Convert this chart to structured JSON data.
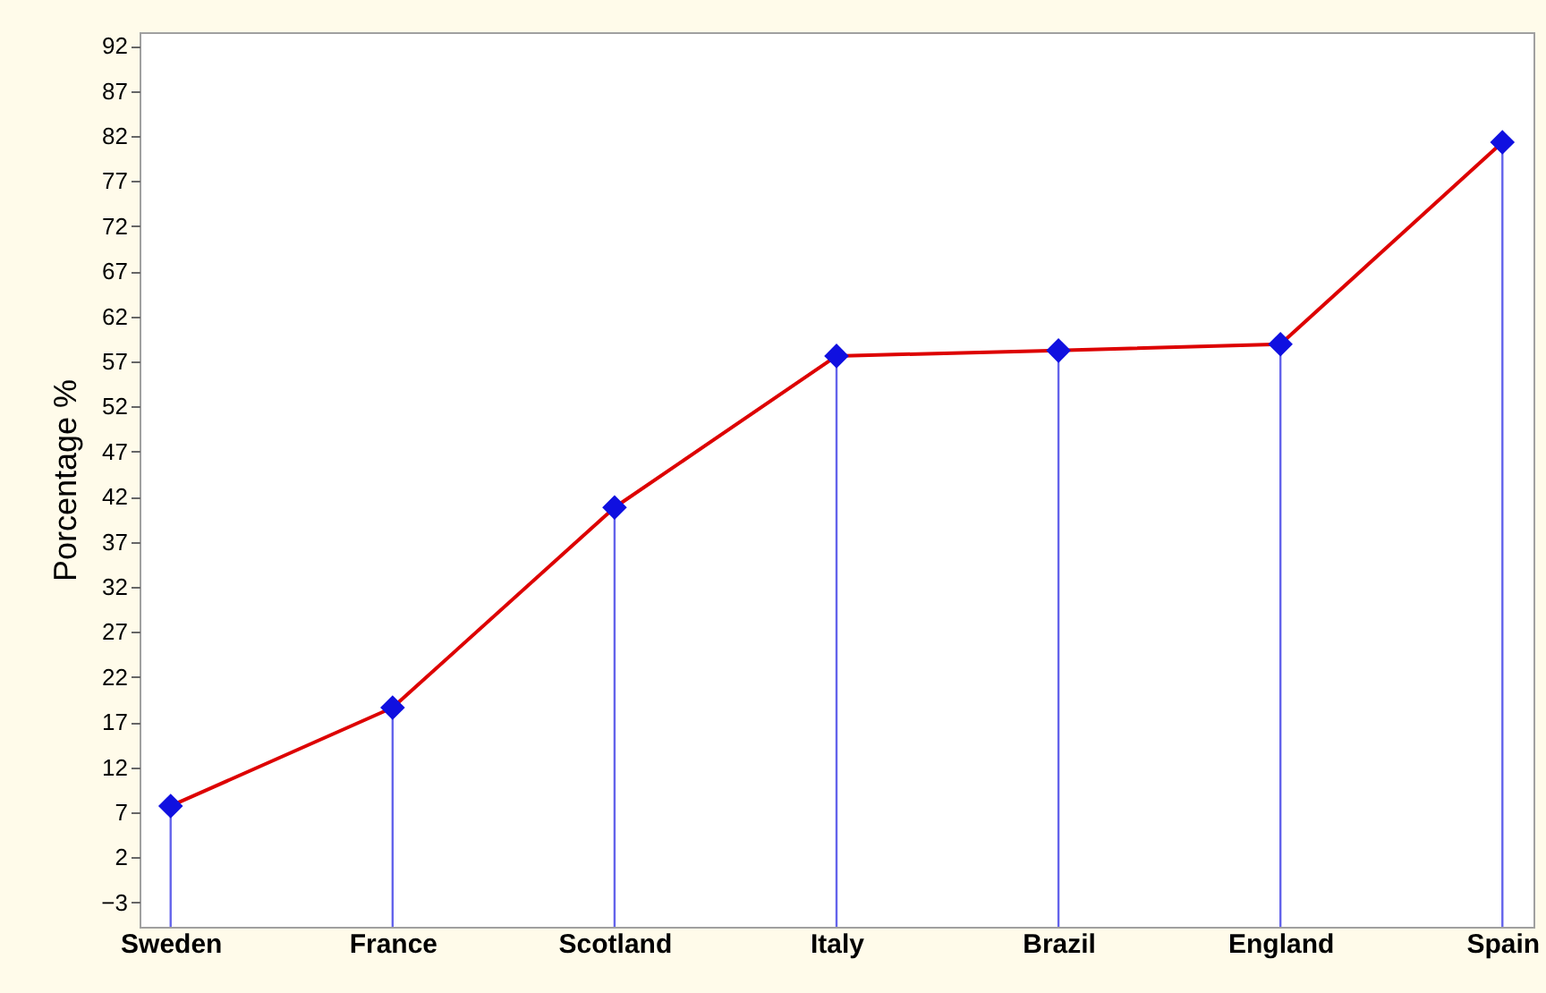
{
  "chart_data": {
    "type": "line",
    "ylabel": "Porcentage %",
    "categories": [
      "Sweden",
      "France",
      "Scotland",
      "Italy",
      "Brazil",
      "England",
      "Spain"
    ],
    "series": [
      {
        "type": "line",
        "color": "#dd0000",
        "values": [
          7.7,
          18.6,
          40.8,
          57.6,
          58.2,
          58.9,
          81.3
        ]
      },
      {
        "type": "scatter",
        "color": "#1010e0",
        "marker": "diamond",
        "values": [
          7.7,
          18.6,
          40.8,
          57.6,
          58.2,
          58.9,
          81.3
        ],
        "errors": [
          [
            -5.7,
            7.7
          ],
          [
            -5.7,
            18.6
          ],
          [
            -5.7,
            40.8
          ],
          [
            -5.7,
            57.6
          ],
          [
            -5.7,
            58.2
          ],
          [
            -5.7,
            58.9
          ],
          [
            -5.7,
            81.3
          ]
        ]
      }
    ],
    "ylim": [
      -5.7,
      93.5
    ],
    "yticks": [
      -3,
      2,
      7,
      12,
      17,
      22,
      27,
      32,
      37,
      42,
      47,
      52,
      57,
      62,
      67,
      72,
      77,
      82,
      87,
      92
    ]
  }
}
